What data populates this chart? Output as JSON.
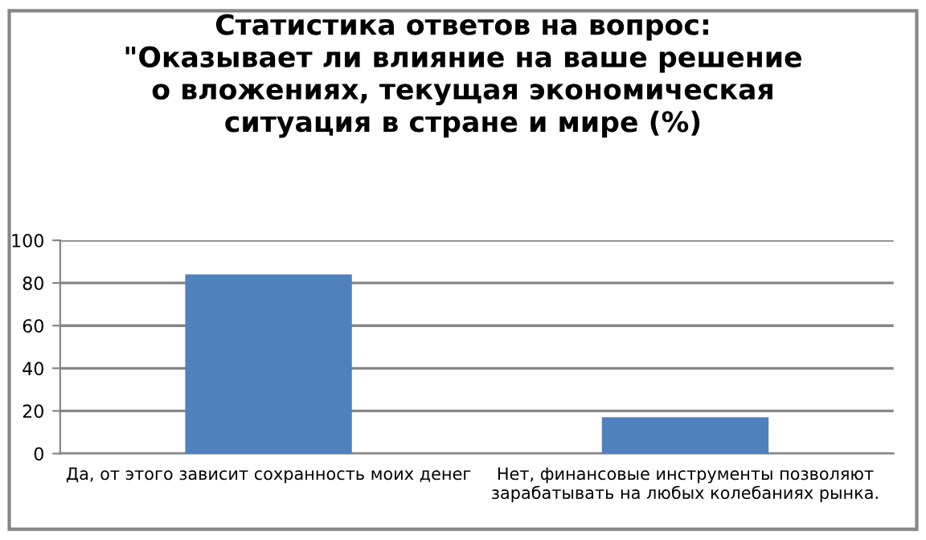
{
  "chart_data": {
    "type": "bar",
    "title": "Статистика ответов на вопрос:\n\"Оказывает ли влияние на ваше решение\nо вложениях, текущая экономическая\nситуация в стране и мире (%)",
    "categories": [
      "Да, от этого зависит сохранность моих денег",
      "Нет, финансовые инструменты позволяют\nзарабатывать на любых колебаниях рынка."
    ],
    "values": [
      84,
      17
    ],
    "color": "#4f81bd",
    "ylim": [
      0,
      100
    ],
    "yticks": [
      0,
      20,
      40,
      60,
      80,
      100
    ],
    "grid": "y"
  }
}
